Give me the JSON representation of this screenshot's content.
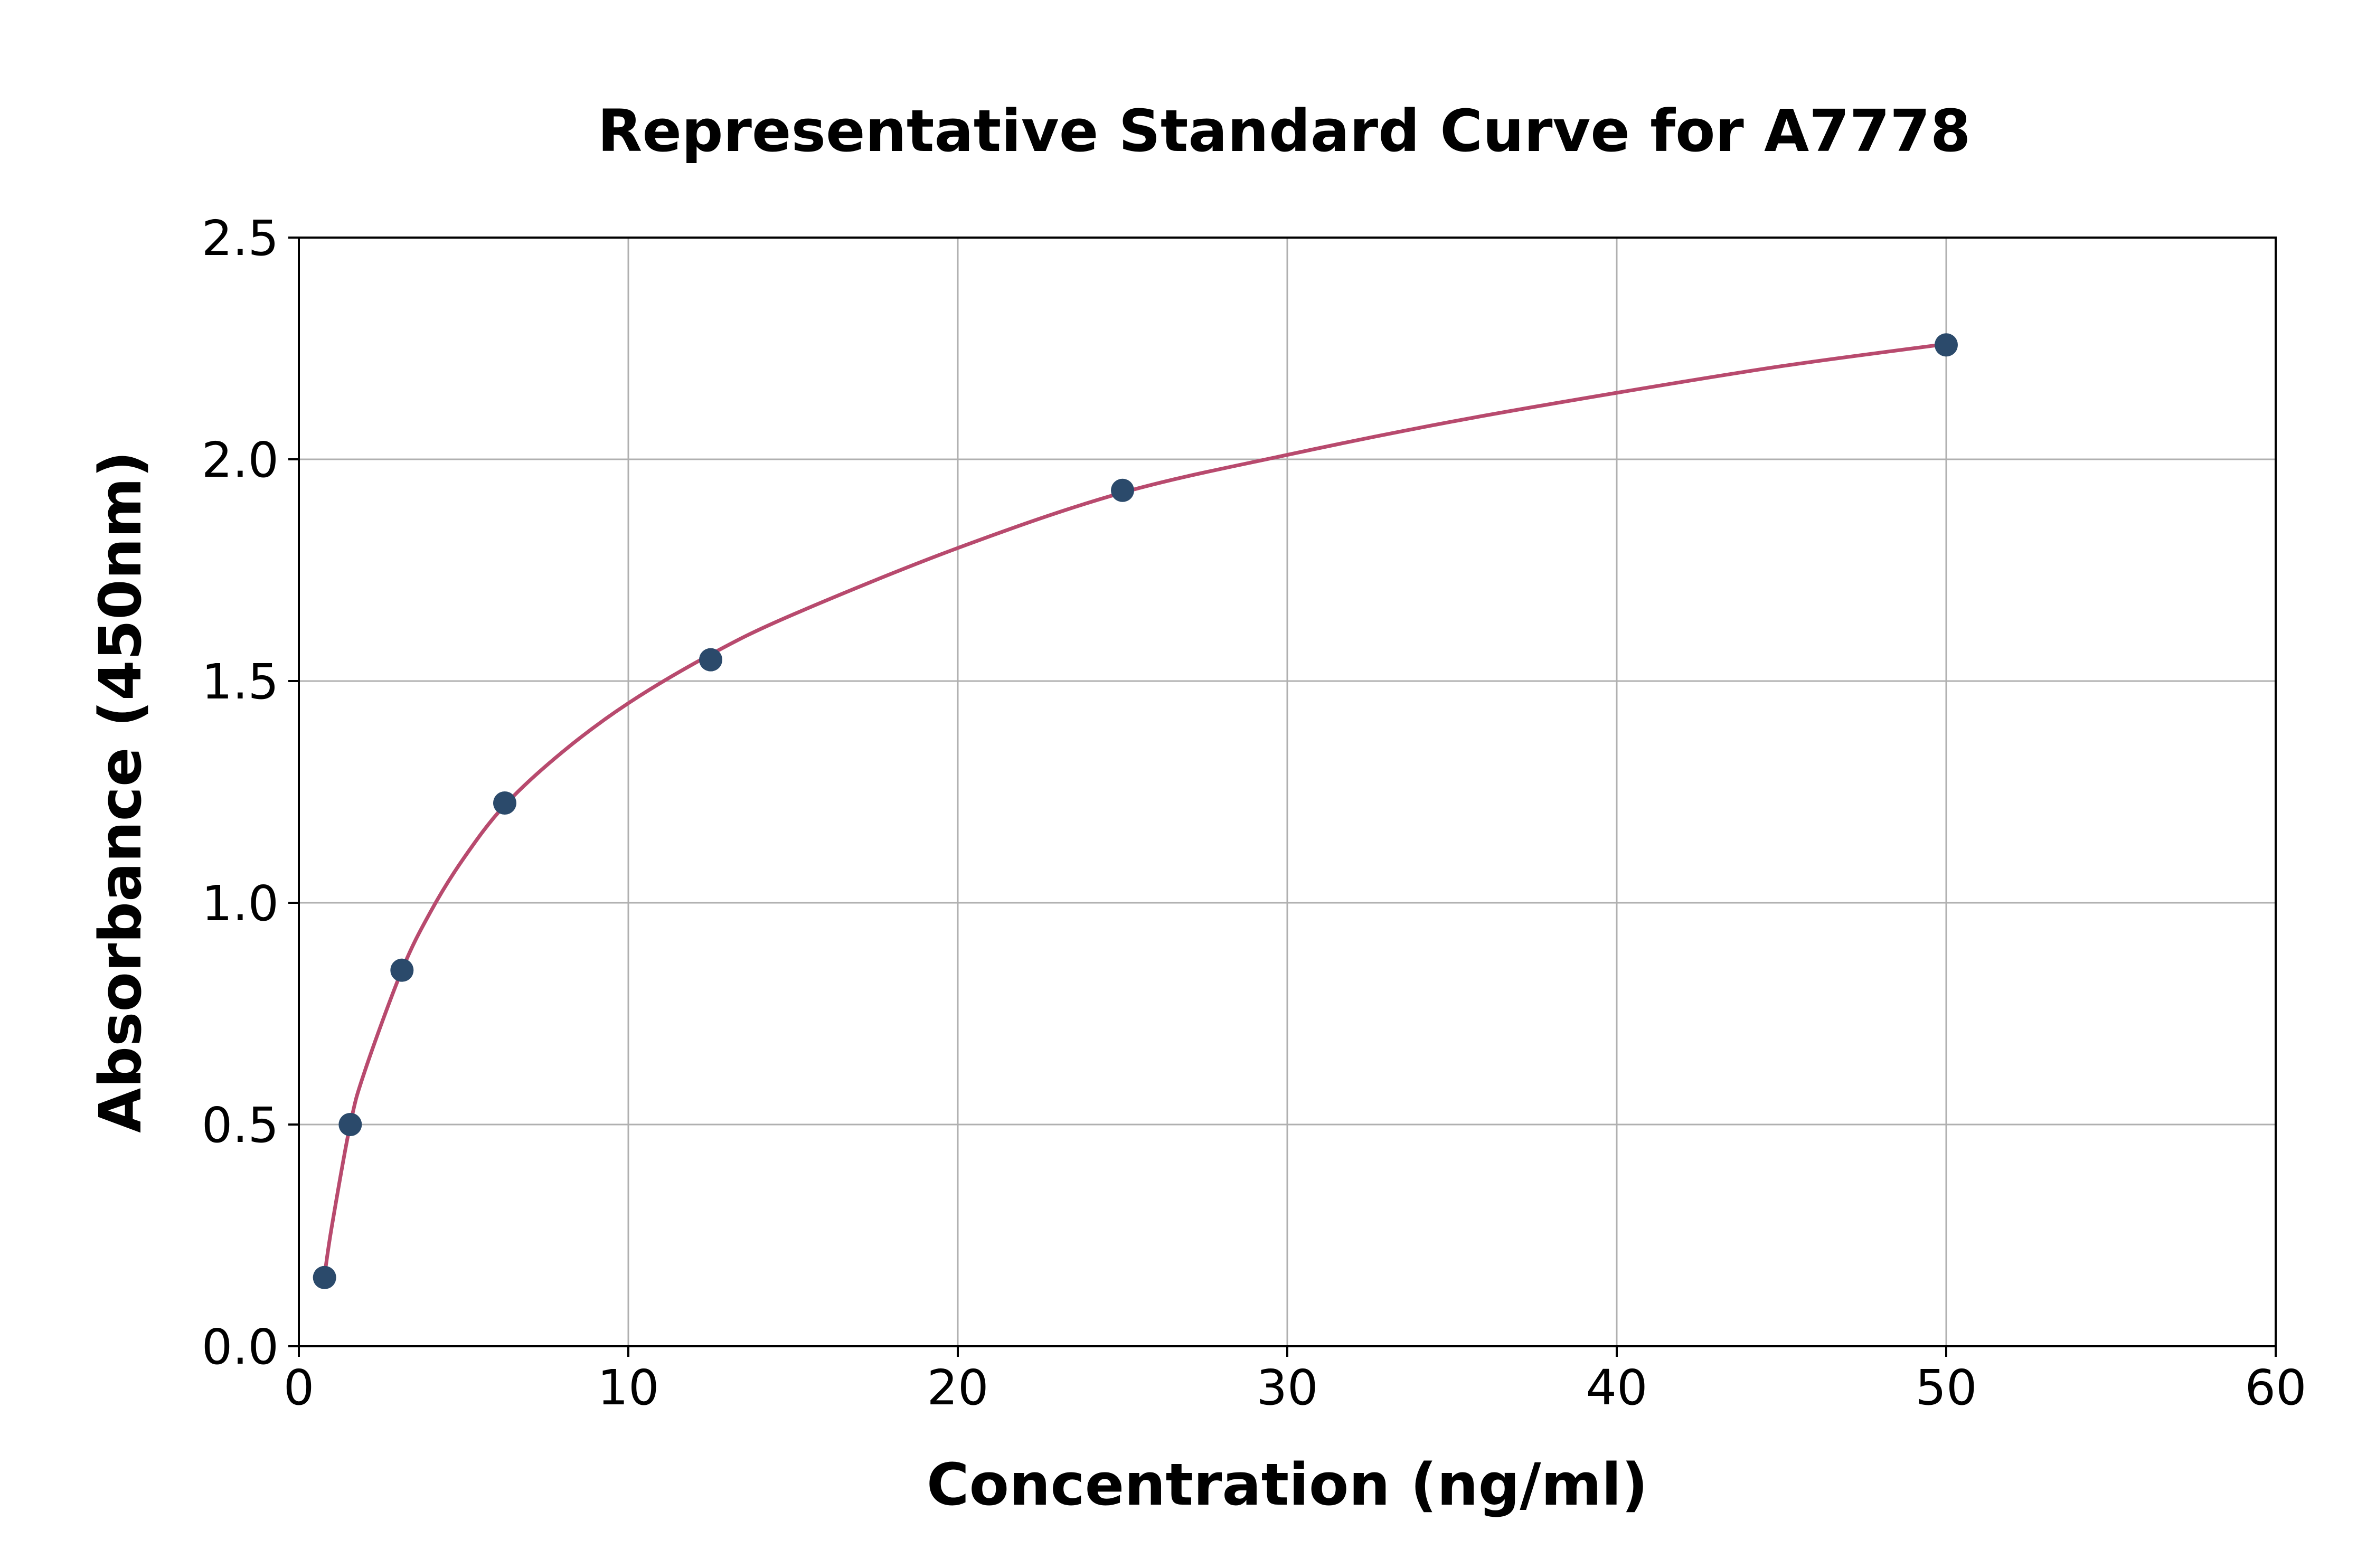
{
  "chart_data": {
    "type": "scatter",
    "title": "Representative Standard Curve for A7778",
    "xlabel": "Concentration (ng/ml)",
    "ylabel": "Absorbance (450nm)",
    "xlim": [
      0,
      60
    ],
    "ylim": [
      0,
      2.5
    ],
    "xticks": [
      "0",
      "10",
      "20",
      "30",
      "40",
      "50",
      "60"
    ],
    "yticks": [
      "0.0",
      "0.5",
      "1.0",
      "1.5",
      "2.0",
      "2.5"
    ],
    "grid": true,
    "series": [
      {
        "kind": "points",
        "x": [
          0.78,
          1.56,
          3.13,
          6.25,
          12.5,
          25,
          50
        ],
        "y": [
          0.155,
          0.5,
          0.848,
          1.225,
          1.548,
          1.93,
          2.258
        ]
      },
      {
        "kind": "fitted-curve",
        "x": [
          0.78,
          1.0,
          1.56,
          2.0,
          3.13,
          4.0,
          5.0,
          6.25,
          8.0,
          10.0,
          12.5,
          15.0,
          20.0,
          25.0,
          30.0,
          35.0,
          40.0,
          45.0,
          50.0
        ],
        "y": [
          0.16,
          0.27,
          0.5,
          0.62,
          0.848,
          0.98,
          1.1,
          1.22,
          1.34,
          1.45,
          1.56,
          1.65,
          1.8,
          1.925,
          2.01,
          2.085,
          2.15,
          2.21,
          2.26
        ]
      }
    ],
    "colors": {
      "points": "#2b4a6b",
      "curve": "#b84a6e",
      "grid": "#b0b0b0",
      "axes": "#000000"
    }
  }
}
